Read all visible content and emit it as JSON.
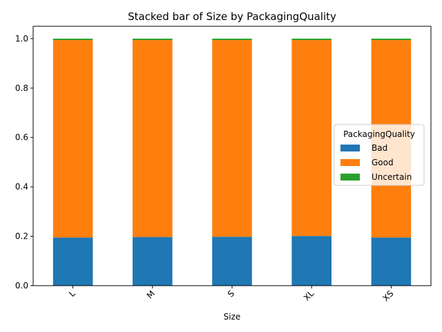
{
  "chart_data": {
    "type": "bar",
    "stacked": true,
    "title": "Stacked bar of Size by PackagingQuality",
    "xlabel": "Size",
    "ylabel": "",
    "categories": [
      "L",
      "M",
      "S",
      "XL",
      "XS"
    ],
    "series": [
      {
        "name": "Bad",
        "color": "#1f77b4",
        "values": [
          0.195,
          0.197,
          0.198,
          0.201,
          0.195
        ]
      },
      {
        "name": "Good",
        "color": "#ff7f0e",
        "values": [
          0.799,
          0.797,
          0.796,
          0.793,
          0.799
        ]
      },
      {
        "name": "Uncertain",
        "color": "#2ca02c",
        "values": [
          0.006,
          0.006,
          0.006,
          0.006,
          0.006
        ]
      }
    ],
    "ylim": [
      0,
      1.05
    ],
    "yticks": [
      "0.0",
      "0.2",
      "0.4",
      "0.6",
      "0.8",
      "1.0"
    ],
    "ytick_values": [
      0,
      0.2,
      0.4,
      0.6,
      0.8,
      1.0
    ],
    "legend": {
      "title": "PackagingQuality",
      "placement": "center-right"
    },
    "grid": false
  }
}
